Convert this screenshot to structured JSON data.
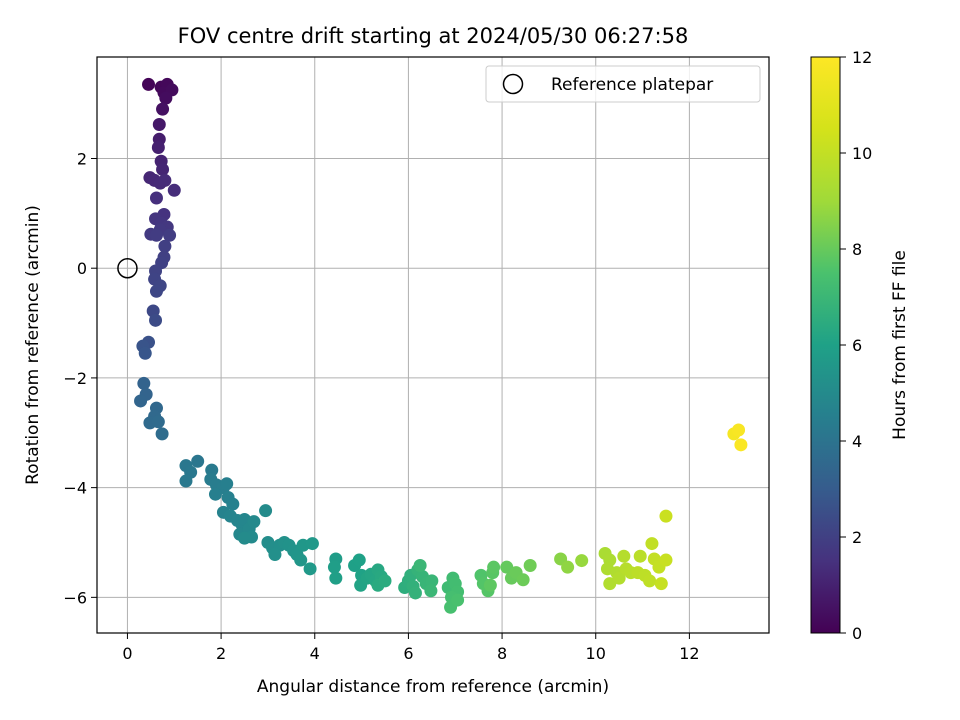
{
  "chart_data": {
    "type": "scatter",
    "title": "FOV centre drift starting at 2024/05/30 06:27:58",
    "xlabel": "Angular distance from reference (arcmin)",
    "ylabel": "Rotation from reference (arcmin)",
    "xlim": [
      -0.65,
      13.7
    ],
    "ylim": [
      -6.65,
      3.85
    ],
    "xticks": [
      0,
      2,
      4,
      6,
      8,
      10,
      12
    ],
    "yticks": [
      -6,
      -4,
      -2,
      0,
      2
    ],
    "xtick_labels": [
      "0",
      "2",
      "4",
      "6",
      "8",
      "10",
      "12"
    ],
    "ytick_labels": [
      "−6",
      "−4",
      "−2",
      "0",
      "2"
    ],
    "grid": true,
    "legend": {
      "position": "top-right",
      "entries": [
        "Reference platepar"
      ]
    },
    "reference_point": {
      "x": 0,
      "y": 0,
      "label": "Reference platepar"
    },
    "colorbar": {
      "label": "Hours from first FF file",
      "range": [
        0,
        12
      ],
      "ticks": [
        0,
        2,
        4,
        6,
        8,
        10,
        12
      ],
      "colormap": "viridis"
    },
    "points": [
      {
        "x": 0.45,
        "y": 3.35,
        "h": 0.1
      },
      {
        "x": 0.72,
        "y": 3.3,
        "h": 0.15
      },
      {
        "x": 0.85,
        "y": 3.35,
        "h": 0.2
      },
      {
        "x": 0.78,
        "y": 3.2,
        "h": 0.25
      },
      {
        "x": 0.95,
        "y": 3.25,
        "h": 0.3
      },
      {
        "x": 0.82,
        "y": 3.1,
        "h": 0.35
      },
      {
        "x": 0.75,
        "y": 2.9,
        "h": 0.5
      },
      {
        "x": 0.68,
        "y": 2.62,
        "h": 0.7
      },
      {
        "x": 0.68,
        "y": 2.35,
        "h": 0.85
      },
      {
        "x": 0.66,
        "y": 2.2,
        "h": 0.95
      },
      {
        "x": 0.72,
        "y": 1.95,
        "h": 1.05
      },
      {
        "x": 0.75,
        "y": 1.8,
        "h": 1.1
      },
      {
        "x": 0.48,
        "y": 1.65,
        "h": 1.15
      },
      {
        "x": 0.58,
        "y": 1.6,
        "h": 1.2
      },
      {
        "x": 0.7,
        "y": 1.55,
        "h": 1.25
      },
      {
        "x": 0.8,
        "y": 1.6,
        "h": 1.3
      },
      {
        "x": 1.0,
        "y": 1.42,
        "h": 1.35
      },
      {
        "x": 0.62,
        "y": 1.28,
        "h": 1.45
      },
      {
        "x": 0.78,
        "y": 0.98,
        "h": 1.55
      },
      {
        "x": 0.6,
        "y": 0.9,
        "h": 1.6
      },
      {
        "x": 0.72,
        "y": 0.82,
        "h": 1.65
      },
      {
        "x": 0.85,
        "y": 0.75,
        "h": 1.7
      },
      {
        "x": 0.7,
        "y": 0.7,
        "h": 1.75
      },
      {
        "x": 0.5,
        "y": 0.62,
        "h": 1.8
      },
      {
        "x": 0.62,
        "y": 0.6,
        "h": 1.85
      },
      {
        "x": 0.9,
        "y": 0.6,
        "h": 1.9
      },
      {
        "x": 0.8,
        "y": 0.4,
        "h": 1.95
      },
      {
        "x": 0.78,
        "y": 0.2,
        "h": 2.0
      },
      {
        "x": 0.73,
        "y": 0.1,
        "h": 2.05
      },
      {
        "x": 0.6,
        "y": -0.05,
        "h": 2.1
      },
      {
        "x": 0.58,
        "y": -0.2,
        "h": 2.15
      },
      {
        "x": 0.7,
        "y": -0.32,
        "h": 2.2
      },
      {
        "x": 0.62,
        "y": -0.42,
        "h": 2.25
      },
      {
        "x": 0.55,
        "y": -0.78,
        "h": 2.3
      },
      {
        "x": 0.6,
        "y": -0.95,
        "h": 2.4
      },
      {
        "x": 0.45,
        "y": -1.35,
        "h": 2.6
      },
      {
        "x": 0.33,
        "y": -1.42,
        "h": 2.7
      },
      {
        "x": 0.38,
        "y": -1.55,
        "h": 2.8
      },
      {
        "x": 0.35,
        "y": -2.1,
        "h": 3.3
      },
      {
        "x": 0.4,
        "y": -2.3,
        "h": 3.35
      },
      {
        "x": 0.28,
        "y": -2.42,
        "h": 3.4
      },
      {
        "x": 0.62,
        "y": -2.55,
        "h": 3.5
      },
      {
        "x": 0.58,
        "y": -2.7,
        "h": 3.55
      },
      {
        "x": 0.48,
        "y": -2.82,
        "h": 3.6
      },
      {
        "x": 0.66,
        "y": -2.8,
        "h": 3.65
      },
      {
        "x": 0.74,
        "y": -3.02,
        "h": 3.7
      },
      {
        "x": 1.5,
        "y": -3.52,
        "h": 4.1
      },
      {
        "x": 1.25,
        "y": -3.6,
        "h": 4.15
      },
      {
        "x": 1.35,
        "y": -3.72,
        "h": 4.2
      },
      {
        "x": 1.25,
        "y": -3.88,
        "h": 4.25
      },
      {
        "x": 1.8,
        "y": -3.68,
        "h": 4.3
      },
      {
        "x": 1.78,
        "y": -3.85,
        "h": 4.35
      },
      {
        "x": 1.9,
        "y": -3.95,
        "h": 4.4
      },
      {
        "x": 2.05,
        "y": -4.0,
        "h": 4.45
      },
      {
        "x": 1.88,
        "y": -4.12,
        "h": 4.5
      },
      {
        "x": 2.12,
        "y": -3.93,
        "h": 4.5
      },
      {
        "x": 2.15,
        "y": -4.18,
        "h": 4.55
      },
      {
        "x": 2.25,
        "y": -4.3,
        "h": 4.6
      },
      {
        "x": 2.05,
        "y": -4.45,
        "h": 4.65
      },
      {
        "x": 2.2,
        "y": -4.52,
        "h": 4.7
      },
      {
        "x": 2.35,
        "y": -4.6,
        "h": 4.75
      },
      {
        "x": 2.45,
        "y": -4.68,
        "h": 4.8
      },
      {
        "x": 2.5,
        "y": -4.58,
        "h": 4.8
      },
      {
        "x": 2.4,
        "y": -4.85,
        "h": 4.85
      },
      {
        "x": 2.6,
        "y": -4.75,
        "h": 4.9
      },
      {
        "x": 2.7,
        "y": -4.62,
        "h": 4.95
      },
      {
        "x": 2.65,
        "y": -4.9,
        "h": 5.0
      },
      {
        "x": 2.5,
        "y": -4.92,
        "h": 5.05
      },
      {
        "x": 2.95,
        "y": -4.42,
        "h": 5.05
      },
      {
        "x": 3.0,
        "y": -5.0,
        "h": 5.1
      },
      {
        "x": 3.1,
        "y": -5.1,
        "h": 5.15
      },
      {
        "x": 3.25,
        "y": -5.05,
        "h": 5.2
      },
      {
        "x": 3.15,
        "y": -5.22,
        "h": 5.25
      },
      {
        "x": 3.35,
        "y": -5.0,
        "h": 5.3
      },
      {
        "x": 3.45,
        "y": -5.05,
        "h": 5.35
      },
      {
        "x": 3.55,
        "y": -5.15,
        "h": 5.4
      },
      {
        "x": 3.62,
        "y": -5.22,
        "h": 5.45
      },
      {
        "x": 3.7,
        "y": -5.32,
        "h": 5.5
      },
      {
        "x": 3.75,
        "y": -5.05,
        "h": 5.55
      },
      {
        "x": 3.95,
        "y": -5.02,
        "h": 5.6
      },
      {
        "x": 3.9,
        "y": -5.48,
        "h": 5.65
      },
      {
        "x": 4.45,
        "y": -5.3,
        "h": 5.8
      },
      {
        "x": 4.42,
        "y": -5.45,
        "h": 5.85
      },
      {
        "x": 4.45,
        "y": -5.65,
        "h": 5.9
      },
      {
        "x": 4.85,
        "y": -5.42,
        "h": 5.95
      },
      {
        "x": 4.95,
        "y": -5.32,
        "h": 6.0
      },
      {
        "x": 5.0,
        "y": -5.6,
        "h": 6.05
      },
      {
        "x": 4.98,
        "y": -5.78,
        "h": 6.1
      },
      {
        "x": 5.12,
        "y": -5.65,
        "h": 6.15
      },
      {
        "x": 5.2,
        "y": -5.58,
        "h": 6.2
      },
      {
        "x": 5.3,
        "y": -5.7,
        "h": 6.25
      },
      {
        "x": 5.35,
        "y": -5.5,
        "h": 6.3
      },
      {
        "x": 5.42,
        "y": -5.62,
        "h": 6.35
      },
      {
        "x": 5.35,
        "y": -5.78,
        "h": 6.4
      },
      {
        "x": 5.5,
        "y": -5.7,
        "h": 6.45
      },
      {
        "x": 5.92,
        "y": -5.82,
        "h": 6.55
      },
      {
        "x": 6.0,
        "y": -5.7,
        "h": 6.6
      },
      {
        "x": 6.05,
        "y": -5.6,
        "h": 6.65
      },
      {
        "x": 6.1,
        "y": -5.8,
        "h": 6.7
      },
      {
        "x": 6.15,
        "y": -5.92,
        "h": 6.75
      },
      {
        "x": 6.2,
        "y": -5.5,
        "h": 6.8
      },
      {
        "x": 6.3,
        "y": -5.62,
        "h": 6.85
      },
      {
        "x": 6.38,
        "y": -5.75,
        "h": 6.9
      },
      {
        "x": 6.5,
        "y": -5.7,
        "h": 6.95
      },
      {
        "x": 6.48,
        "y": -5.88,
        "h": 7.0
      },
      {
        "x": 6.25,
        "y": -5.42,
        "h": 7.0
      },
      {
        "x": 6.85,
        "y": -5.82,
        "h": 7.15
      },
      {
        "x": 6.95,
        "y": -5.65,
        "h": 7.2
      },
      {
        "x": 7.0,
        "y": -5.75,
        "h": 7.25
      },
      {
        "x": 7.05,
        "y": -5.9,
        "h": 7.3
      },
      {
        "x": 6.92,
        "y": -6.0,
        "h": 7.35
      },
      {
        "x": 6.9,
        "y": -6.18,
        "h": 7.4
      },
      {
        "x": 7.05,
        "y": -6.05,
        "h": 7.45
      },
      {
        "x": 7.55,
        "y": -5.6,
        "h": 7.6
      },
      {
        "x": 7.6,
        "y": -5.75,
        "h": 7.65
      },
      {
        "x": 7.7,
        "y": -5.88,
        "h": 7.7
      },
      {
        "x": 7.8,
        "y": -5.55,
        "h": 7.75
      },
      {
        "x": 7.82,
        "y": -5.45,
        "h": 7.8
      },
      {
        "x": 7.75,
        "y": -5.78,
        "h": 7.85
      },
      {
        "x": 8.1,
        "y": -5.45,
        "h": 7.95
      },
      {
        "x": 8.2,
        "y": -5.65,
        "h": 8.0
      },
      {
        "x": 8.3,
        "y": -5.55,
        "h": 8.05
      },
      {
        "x": 8.45,
        "y": -5.68,
        "h": 8.1
      },
      {
        "x": 8.6,
        "y": -5.42,
        "h": 8.15
      },
      {
        "x": 9.25,
        "y": -5.3,
        "h": 8.6
      },
      {
        "x": 9.4,
        "y": -5.45,
        "h": 8.7
      },
      {
        "x": 9.7,
        "y": -5.33,
        "h": 8.85
      },
      {
        "x": 10.2,
        "y": -5.2,
        "h": 9.3
      },
      {
        "x": 10.3,
        "y": -5.32,
        "h": 9.35
      },
      {
        "x": 10.25,
        "y": -5.48,
        "h": 9.4
      },
      {
        "x": 10.45,
        "y": -5.55,
        "h": 9.45
      },
      {
        "x": 10.3,
        "y": -5.75,
        "h": 9.5
      },
      {
        "x": 10.5,
        "y": -5.65,
        "h": 9.55
      },
      {
        "x": 10.6,
        "y": -5.25,
        "h": 9.6
      },
      {
        "x": 10.65,
        "y": -5.48,
        "h": 9.65
      },
      {
        "x": 10.75,
        "y": -5.55,
        "h": 9.7
      },
      {
        "x": 10.95,
        "y": -5.25,
        "h": 9.75
      },
      {
        "x": 10.9,
        "y": -5.55,
        "h": 9.8
      },
      {
        "x": 11.05,
        "y": -5.6,
        "h": 9.85
      },
      {
        "x": 11.15,
        "y": -5.7,
        "h": 9.9
      },
      {
        "x": 11.2,
        "y": -5.02,
        "h": 9.95
      },
      {
        "x": 11.25,
        "y": -5.3,
        "h": 10.0
      },
      {
        "x": 11.35,
        "y": -5.45,
        "h": 10.05
      },
      {
        "x": 11.4,
        "y": -5.75,
        "h": 10.1
      },
      {
        "x": 11.5,
        "y": -5.32,
        "h": 10.15
      },
      {
        "x": 11.5,
        "y": -4.52,
        "h": 10.2
      },
      {
        "x": 12.95,
        "y": -3.02,
        "h": 11.7
      },
      {
        "x": 13.05,
        "y": -2.95,
        "h": 11.8
      },
      {
        "x": 13.1,
        "y": -3.22,
        "h": 11.9
      }
    ]
  }
}
